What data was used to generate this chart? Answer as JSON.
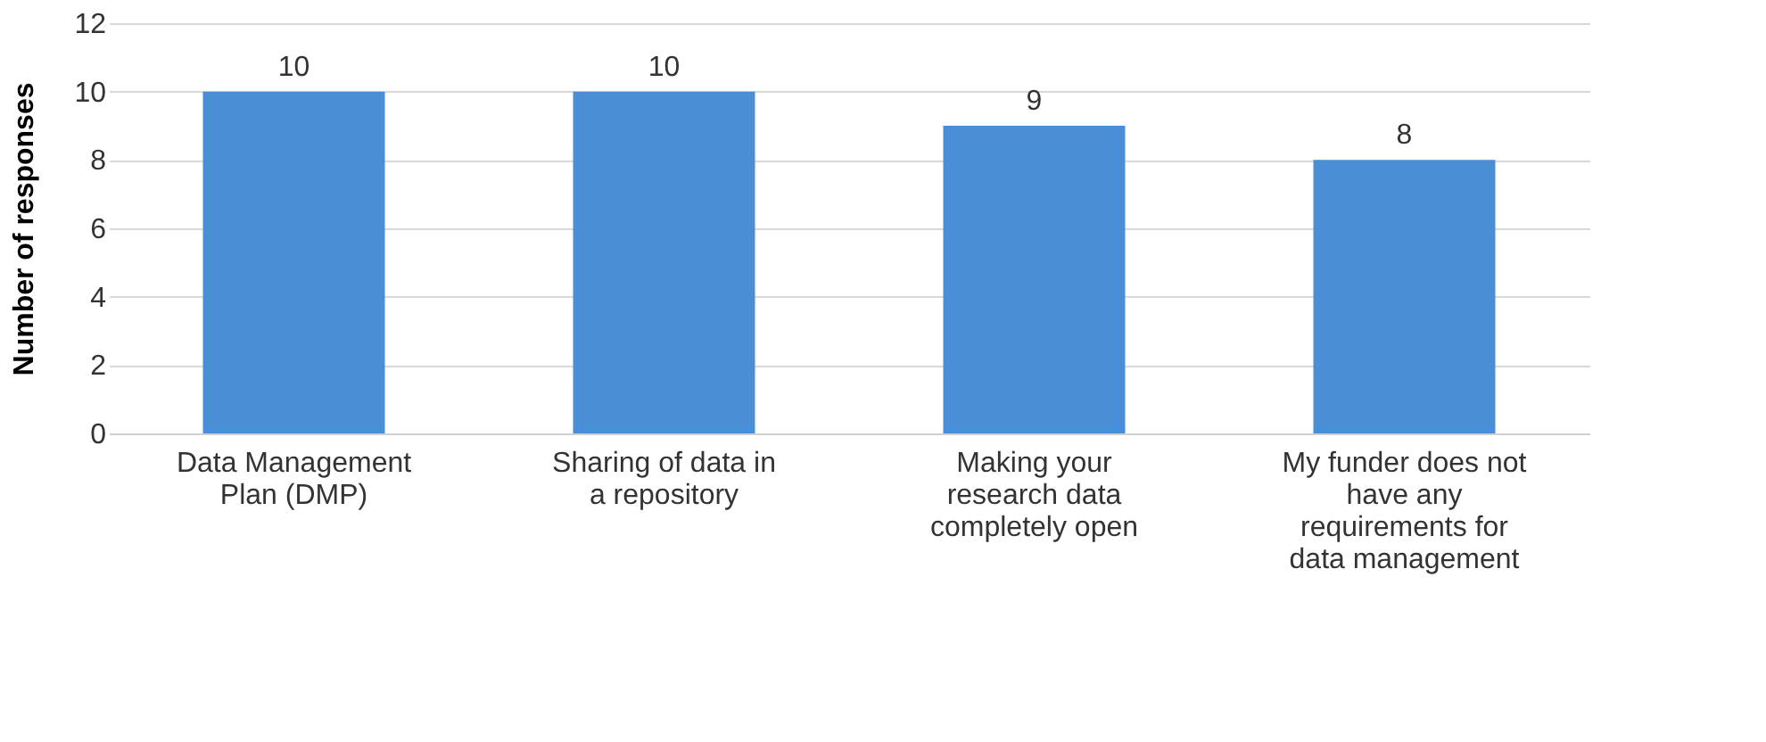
{
  "chart_data": {
    "type": "bar",
    "categories": [
      "Data Management Plan (DMP)",
      "Sharing of data in a repository",
      "Making your research data completely open",
      "My funder does not have any requirements for data management"
    ],
    "values": [
      10,
      10,
      9,
      8
    ],
    "color": "#4a8fd6",
    "ylabel": "Number of responses",
    "ylim": [
      0,
      12
    ],
    "yticks": [
      0,
      2,
      4,
      6,
      8,
      10,
      12
    ],
    "grid": "y",
    "data_labels": true
  }
}
